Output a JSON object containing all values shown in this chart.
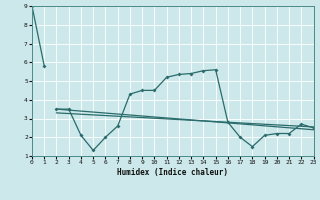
{
  "xlabel": "Humidex (Indice chaleur)",
  "bg_color": "#cce8ea",
  "grid_color": "#ffffff",
  "line_color": "#2a6b6b",
  "ylim": [
    1,
    9
  ],
  "xlim": [
    0,
    23
  ],
  "line1_x": [
    0,
    1
  ],
  "line1_y": [
    9.0,
    5.8
  ],
  "line2_x": [
    2,
    3,
    4,
    5,
    6,
    7,
    8,
    9,
    10,
    11,
    12,
    13,
    14,
    15,
    16,
    17,
    18,
    19,
    20,
    21,
    22,
    23
  ],
  "line2_y": [
    3.5,
    3.5,
    2.1,
    1.3,
    2.0,
    2.6,
    4.3,
    4.5,
    4.5,
    5.2,
    5.35,
    5.4,
    5.55,
    5.6,
    2.8,
    2.0,
    1.5,
    2.1,
    2.2,
    2.2,
    2.7,
    2.5
  ],
  "line3_x": [
    2,
    23
  ],
  "line3_y": [
    3.5,
    2.4
  ],
  "line4_x": [
    2,
    23
  ],
  "line4_y": [
    3.3,
    2.55
  ],
  "yticks": [
    1,
    2,
    3,
    4,
    5,
    6,
    7,
    8,
    9
  ],
  "xticks": [
    0,
    1,
    2,
    3,
    4,
    5,
    6,
    7,
    8,
    9,
    10,
    11,
    12,
    13,
    14,
    15,
    16,
    17,
    18,
    19,
    20,
    21,
    22,
    23
  ]
}
